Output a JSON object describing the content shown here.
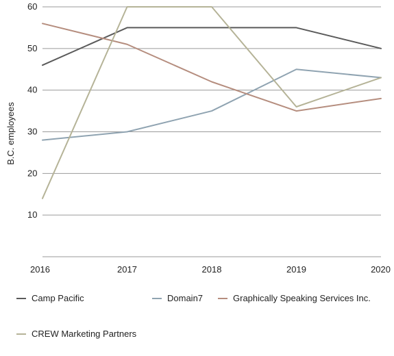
{
  "chart_data": {
    "type": "line",
    "ylabel": "B.C. employees",
    "xlabel": "",
    "x": [
      2016,
      2017,
      2018,
      2019,
      2020
    ],
    "x_tick_labels": [
      "2016",
      "2017",
      "2018",
      "2019",
      "2020"
    ],
    "ylim": [
      0,
      60
    ],
    "y_ticks": [
      10,
      20,
      30,
      40,
      50,
      60
    ],
    "y_tick_labels": [
      "10",
      "20",
      "30",
      "40",
      "50",
      "60"
    ],
    "grid": "horizontal",
    "legend_position": "bottom",
    "series": [
      {
        "name": "Camp Pacific",
        "color": "#5a5a5a",
        "values": [
          46,
          55,
          55,
          55,
          50
        ]
      },
      {
        "name": "Domain7",
        "color": "#8fa3b1",
        "values": [
          28,
          30,
          35,
          45,
          43
        ]
      },
      {
        "name": "Graphically Speaking Services Inc.",
        "color": "#b58d7e",
        "values": [
          56,
          51,
          42,
          35,
          38
        ]
      },
      {
        "name": "CREW Marketing Partners",
        "color": "#b5b397",
        "values": [
          14,
          60,
          60,
          36,
          43
        ]
      }
    ]
  }
}
